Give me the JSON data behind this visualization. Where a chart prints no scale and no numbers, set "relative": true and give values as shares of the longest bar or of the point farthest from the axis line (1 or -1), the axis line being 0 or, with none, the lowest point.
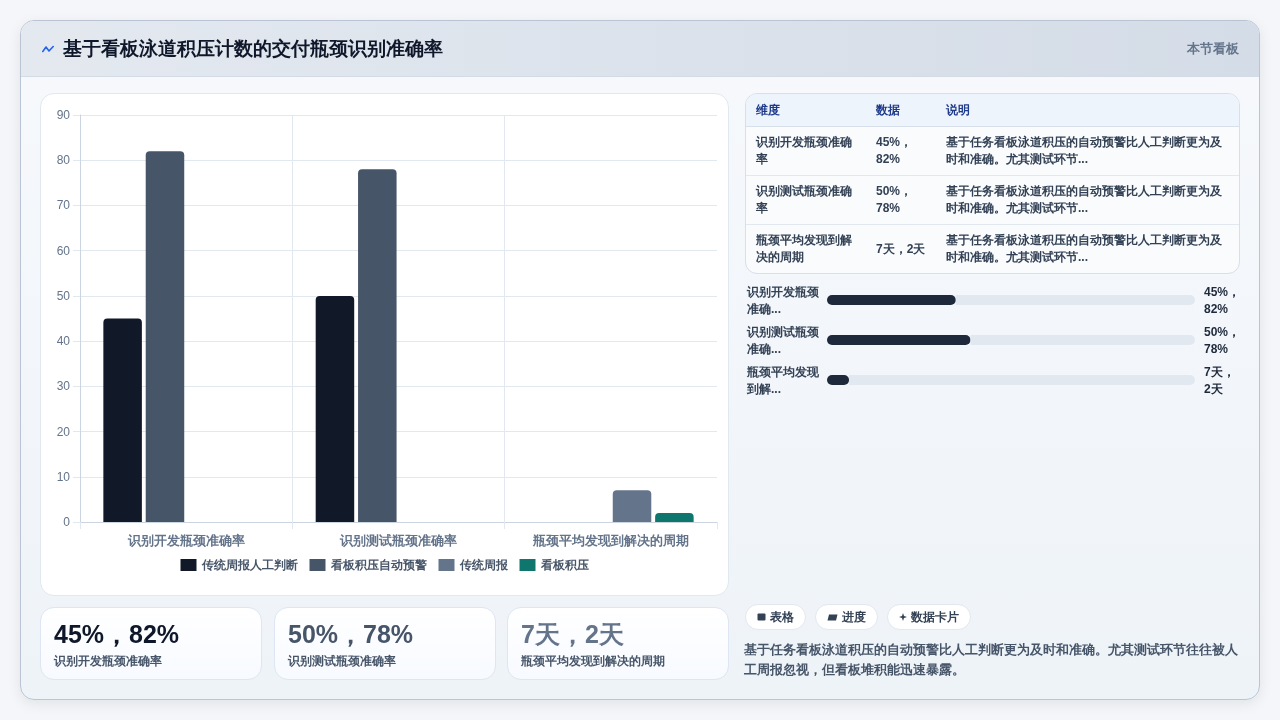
{
  "chart_data": [
    {
      "type": "bar",
      "title": "基于看板泳道积压计数的交付瓶颈识别准确率",
      "annotations": [
        "本节看板"
      ],
      "categories": [
        "识别开发瓶颈准确率",
        "识别测试瓶颈准确率",
        "瓶颈平均发现到解决的周期"
      ],
      "series": [
        {
          "name": "传统周报人工判断",
          "color": "#111827",
          "values": [
            45,
            50,
            null
          ]
        },
        {
          "name": "看板积压自动预警",
          "color": "#475569",
          "values": [
            82,
            78,
            null
          ]
        },
        {
          "name": "传统周报",
          "color": "#64748b",
          "values": [
            null,
            null,
            7
          ]
        },
        {
          "name": "看板积压",
          "color": "#0f766e",
          "values": [
            null,
            null,
            2
          ]
        }
      ],
      "ylim": [
        0,
        90
      ],
      "yticks": [
        0,
        10,
        20,
        30,
        40,
        50,
        60,
        70,
        80,
        90
      ],
      "grid": true,
      "legend": "bottom"
    },
    {
      "type": "other",
      "categories": [
        "维度",
        "数据",
        "说明"
      ],
      "annotations": [
        "识别开发瓶颈准确率",
        "45%，82%",
        "基于任务看板泳道积压的自动预警比人工判断更为及时和准确。尤其测试环节...",
        "识别测试瓶颈准确率",
        "50%，78%",
        "基于任务看板泳道积压的自动预警比人工判断更为及时和准确。尤其测试环节...",
        "瓶颈平均发现到解决的周期",
        "7天，2天",
        "基于任务看板泳道积压的自动预警比人工判断更为及时和准确。尤其测试环节..."
      ]
    },
    {
      "type": "bar",
      "orientation": "horizontal",
      "stacked": true,
      "relative": true,
      "categories": [
        "识别开发瓶颈准确...",
        "识别测试瓶颈准确...",
        "瓶颈平均发现到解..."
      ],
      "series": [
        {
          "color": "#1e293b",
          "values": [
            0.35,
            0.39,
            0.06
          ]
        },
        {
          "color": "#e2e8f0",
          "values": [
            0.65,
            0.61,
            0.94
          ]
        }
      ],
      "annotations": [
        "45%，82%",
        "50%，78%",
        "7天，2天"
      ]
    },
    {
      "type": "other",
      "annotations": [
        "45%，82%",
        "识别开发瓶颈准确率",
        "50%，78%",
        "识别测试瓶颈准确率",
        "7天，2天",
        "瓶颈平均发现到解决的周期"
      ],
      "colors": [
        "#0f172a",
        "#475569",
        "#64748b"
      ]
    },
    {
      "type": "other",
      "categories": [
        "表格",
        "进度",
        "数据卡片"
      ],
      "annotations": [
        "基于任务看板泳道积压的自动预警比人工判断更为及时和准确。尤其测试环节往往被人工周报忽视，但看板堆积能迅速暴露。"
      ]
    }
  ]
}
